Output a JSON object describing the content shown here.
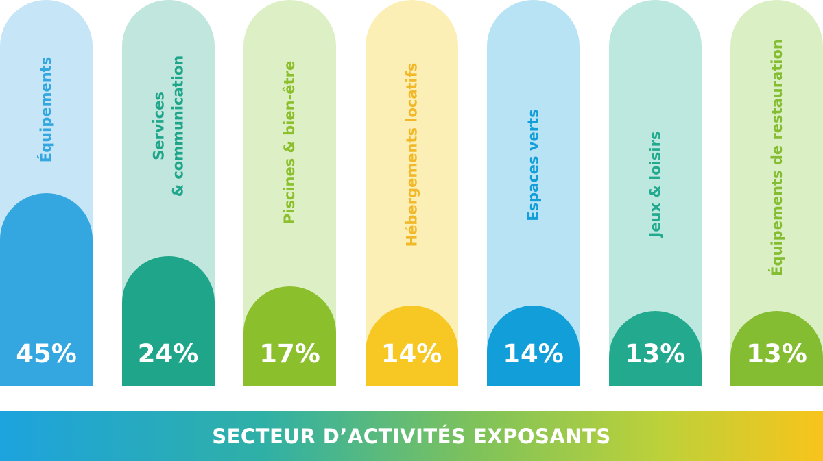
{
  "chart_data": {
    "type": "bar",
    "orientation": "vertical",
    "title": "SECTEUR D’ACTIVITÉS EXPOSANTS",
    "categories": [
      "Équipements",
      "Services\n& communication",
      "Piscines & bien-être",
      "Hébergements locatifs",
      "Espaces verts",
      "Jeux & loisirs",
      "Équipements de restauration"
    ],
    "values": [
      45,
      24,
      17,
      14,
      14,
      13,
      13
    ],
    "value_labels": [
      "45%",
      "24%",
      "17%",
      "14%",
      "14%",
      "13%",
      "13%"
    ],
    "unit": "%",
    "grid": false,
    "legend": "none"
  },
  "colors": {
    "fill": [
      "#35a7e0",
      "#1fa68a",
      "#8bbf2c",
      "#f7c823",
      "#129ed9",
      "#23aa8e",
      "#84bd31"
    ],
    "background": [
      "#c6e5f7",
      "#c0e6dd",
      "#ddefc4",
      "#fcefb5",
      "#b8e3f5",
      "#bde8df",
      "#dbefc5"
    ],
    "label": [
      "#35a7e0",
      "#1fa68a",
      "#8bbf2c",
      "#f1b82a",
      "#129ed9",
      "#23aa8e",
      "#84bd31"
    ],
    "value_text": "#ffffff"
  }
}
